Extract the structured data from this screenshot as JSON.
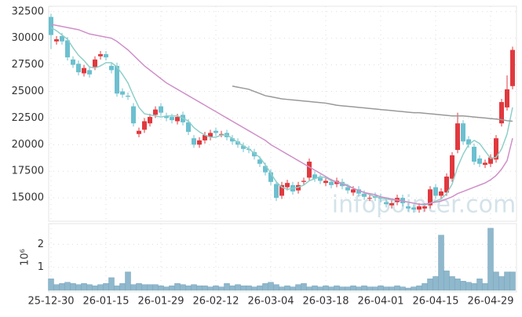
{
  "chart_data": [
    {
      "type": "candlestick",
      "categories": [
        "25-12-30",
        null,
        null,
        null,
        null,
        null,
        null,
        null,
        null,
        null,
        "26-01-15",
        null,
        null,
        null,
        null,
        null,
        null,
        null,
        null,
        null,
        "26-01-29",
        null,
        null,
        null,
        null,
        null,
        null,
        null,
        null,
        null,
        "26-02-12",
        null,
        null,
        null,
        null,
        null,
        null,
        null,
        null,
        null,
        "26-03-04",
        null,
        null,
        null,
        null,
        null,
        null,
        null,
        null,
        null,
        "26-03-18",
        null,
        null,
        null,
        null,
        null,
        null,
        null,
        null,
        null,
        "26-04-01",
        null,
        null,
        null,
        null,
        null,
        null,
        null,
        null,
        null,
        "26-04-15",
        null,
        null,
        null,
        null,
        null,
        null,
        null,
        null,
        null,
        "26-04-29",
        null,
        null,
        null,
        null
      ],
      "open": [
        32000,
        29700,
        30200,
        29800,
        28000,
        27600,
        26700,
        27000,
        27300,
        28300,
        28500,
        27400,
        27400,
        25000,
        24600,
        23600,
        21000,
        21400,
        22000,
        22800,
        23600,
        22700,
        22600,
        22200,
        22800,
        22100,
        20600,
        20000,
        20400,
        20700,
        21300,
        21000,
        21100,
        20600,
        20300,
        19900,
        19600,
        19300,
        18600,
        18000,
        17400,
        16300,
        15200,
        16000,
        16200,
        15700,
        16500,
        16900,
        17200,
        16900,
        16400,
        16500,
        16300,
        16500,
        16000,
        15500,
        15800,
        15400,
        15000,
        15200,
        15100,
        14600,
        14300,
        14600,
        15000,
        14200,
        14100,
        13900,
        14000,
        14300,
        16000,
        15200,
        15500,
        16800,
        19500,
        22000,
        20500,
        19800,
        18700,
        18100,
        18200,
        18600,
        22000,
        23500,
        25500
      ],
      "high": [
        32300,
        30200,
        30500,
        30100,
        28300,
        27900,
        27500,
        27300,
        28300,
        28800,
        28800,
        27700,
        27700,
        25300,
        24900,
        23900,
        21600,
        22500,
        22900,
        23600,
        23900,
        23000,
        22900,
        22900,
        23100,
        22400,
        20900,
        20700,
        21200,
        21400,
        21600,
        21300,
        21400,
        20900,
        20600,
        20200,
        19900,
        19600,
        18900,
        18300,
        17700,
        16600,
        16500,
        16700,
        16500,
        16500,
        16900,
        18700,
        17500,
        17200,
        16900,
        16800,
        16900,
        16800,
        16300,
        16100,
        16100,
        15700,
        15300,
        15500,
        15400,
        14900,
        14800,
        15300,
        15300,
        14500,
        14400,
        14500,
        14500,
        16100,
        16300,
        15900,
        17300,
        19300,
        23000,
        22300,
        20800,
        20100,
        19000,
        18600,
        19100,
        20900,
        24300,
        26500,
        29200
      ],
      "low": [
        29000,
        29400,
        29400,
        27900,
        27200,
        26500,
        26400,
        26300,
        27000,
        28000,
        27900,
        26700,
        24500,
        24400,
        24200,
        21700,
        20700,
        21100,
        21700,
        22500,
        22700,
        22200,
        22000,
        21900,
        21800,
        20900,
        19700,
        19700,
        20100,
        20400,
        20800,
        20700,
        20400,
        20000,
        19700,
        19300,
        19200,
        18600,
        17900,
        17100,
        16200,
        14700,
        14900,
        15700,
        15300,
        15400,
        16200,
        16600,
        16500,
        16300,
        16100,
        15900,
        16000,
        15800,
        15400,
        15200,
        15100,
        14800,
        14700,
        14700,
        14600,
        14100,
        14000,
        14300,
        14200,
        13700,
        13600,
        13600,
        13700,
        14000,
        14900,
        14900,
        15200,
        16500,
        19200,
        20000,
        19700,
        18100,
        17900,
        17800,
        17900,
        18300,
        21700,
        23200,
        25200
      ],
      "close": [
        30300,
        29900,
        29700,
        28200,
        27500,
        26800,
        27200,
        26600,
        28000,
        28500,
        28200,
        27000,
        24800,
        24700,
        24500,
        22000,
        21300,
        22200,
        22600,
        23300,
        23000,
        22500,
        22300,
        22600,
        22100,
        21200,
        20000,
        20400,
        20900,
        21100,
        21100,
        21000,
        20700,
        20300,
        20000,
        19600,
        19500,
        18900,
        18200,
        17400,
        16500,
        15000,
        16200,
        16400,
        15600,
        16200,
        16600,
        18400,
        16800,
        16600,
        16600,
        16200,
        16600,
        16100,
        15700,
        15800,
        15400,
        15100,
        15000,
        15000,
        14900,
        14400,
        14500,
        15000,
        14500,
        14000,
        13900,
        14200,
        14200,
        15800,
        15200,
        15600,
        17000,
        19000,
        22000,
        20300,
        20000,
        18400,
        18200,
        18300,
        18800,
        20600,
        24000,
        25200,
        28900
      ],
      "up_color": "#e0393e",
      "down_color": "#6cc0cf",
      "series": [
        {
          "color": "#8fcfc9",
          "values": [
            31000,
            30700,
            30300,
            29900,
            29100,
            28400,
            27900,
            27300,
            27200,
            27400,
            27700,
            27700,
            27300,
            26600,
            25800,
            24600,
            23500,
            22900,
            22800,
            22700,
            22600,
            22700,
            22700,
            22700,
            22500,
            22200,
            21600,
            21200,
            20900,
            20700,
            20700,
            20900,
            20900,
            20600,
            20200,
            19900,
            19600,
            19200,
            18800,
            18100,
            17300,
            16500,
            16000,
            15800,
            15900,
            16000,
            16200,
            16600,
            16800,
            17000,
            16900,
            16600,
            16500,
            16400,
            16200,
            15900,
            15700,
            15500,
            15300,
            15100,
            15000,
            14900,
            14800,
            14800,
            14700,
            14600,
            14500,
            14400,
            14300,
            14500,
            14700,
            14900,
            15400,
            16300,
            17900,
            19100,
            20000,
            20400,
            20100,
            19400,
            18700,
            18800,
            19600,
            21000,
            23500
          ]
        },
        {
          "color": "#cf8fc8",
          "values": [
            31300,
            31200,
            31100,
            31000,
            30900,
            30800,
            30600,
            30400,
            30300,
            30200,
            30100,
            30000,
            29700,
            29300,
            28900,
            28400,
            27900,
            27400,
            27000,
            26600,
            26200,
            25800,
            25500,
            25200,
            24900,
            24600,
            24300,
            24000,
            23700,
            23400,
            23100,
            22800,
            22500,
            22200,
            21900,
            21600,
            21300,
            21000,
            20700,
            20400,
            20000,
            19700,
            19400,
            19100,
            18800,
            18500,
            18200,
            17900,
            17600,
            17300,
            17000,
            16700,
            16500,
            16300,
            16100,
            15900,
            15700,
            15500,
            15400,
            15300,
            15100,
            15000,
            14900,
            14800,
            14700,
            14600,
            14500,
            14400,
            14400,
            14500,
            14600,
            14700,
            14900,
            15100,
            15400,
            15600,
            15800,
            16000,
            16200,
            16400,
            16700,
            17100,
            17700,
            18500,
            20600
          ]
        },
        {
          "color": "#999999",
          "values": [
            null,
            null,
            null,
            null,
            null,
            null,
            null,
            null,
            null,
            null,
            null,
            null,
            null,
            null,
            null,
            null,
            null,
            null,
            null,
            null,
            null,
            null,
            null,
            null,
            null,
            null,
            null,
            null,
            null,
            null,
            null,
            null,
            null,
            25500,
            25400,
            25300,
            25200,
            25000,
            24800,
            24600,
            24500,
            24400,
            24300,
            24250,
            24200,
            24150,
            24100,
            24050,
            24000,
            23950,
            23900,
            23800,
            23700,
            23650,
            23600,
            23550,
            23500,
            23450,
            23400,
            23350,
            23300,
            23250,
            23200,
            23150,
            23100,
            23050,
            23000,
            23000,
            22950,
            22900,
            22850,
            22800,
            22750,
            22700,
            22700,
            22700,
            22650,
            22600,
            22550,
            22500,
            22450,
            22400,
            22350,
            22250,
            22200
          ]
        }
      ],
      "ylim": [
        12800,
        33000
      ],
      "yticks": [
        15000,
        17500,
        20000,
        22500,
        25000,
        27500,
        30000,
        32500
      ],
      "grid": true,
      "annotation": "infopointer.com"
    },
    {
      "type": "bar",
      "ylabel": "10⁶",
      "color": "#8fb8cc",
      "values": [
        0.5,
        0.25,
        0.3,
        0.35,
        0.3,
        0.25,
        0.3,
        0.25,
        0.2,
        0.25,
        0.3,
        0.55,
        0.2,
        0.3,
        0.8,
        0.25,
        0.3,
        0.25,
        0.25,
        0.25,
        0.2,
        0.15,
        0.2,
        0.3,
        0.25,
        0.2,
        0.25,
        0.2,
        0.2,
        0.15,
        0.2,
        0.15,
        0.3,
        0.2,
        0.25,
        0.2,
        0.2,
        0.15,
        0.2,
        0.3,
        0.35,
        0.25,
        0.15,
        0.2,
        0.15,
        0.25,
        0.3,
        0.15,
        0.2,
        0.15,
        0.2,
        0.15,
        0.2,
        0.15,
        0.15,
        0.2,
        0.15,
        0.2,
        0.15,
        0.15,
        0.2,
        0.15,
        0.15,
        0.2,
        0.15,
        0.1,
        0.15,
        0.2,
        0.3,
        0.5,
        0.6,
        2.4,
        0.85,
        0.6,
        0.5,
        0.4,
        0.35,
        0.3,
        0.5,
        0.3,
        2.7,
        0.8,
        0.6,
        0.8,
        0.8
      ],
      "ylim": [
        0,
        2.9
      ],
      "yticks": [
        1,
        2
      ],
      "grid": true
    }
  ]
}
